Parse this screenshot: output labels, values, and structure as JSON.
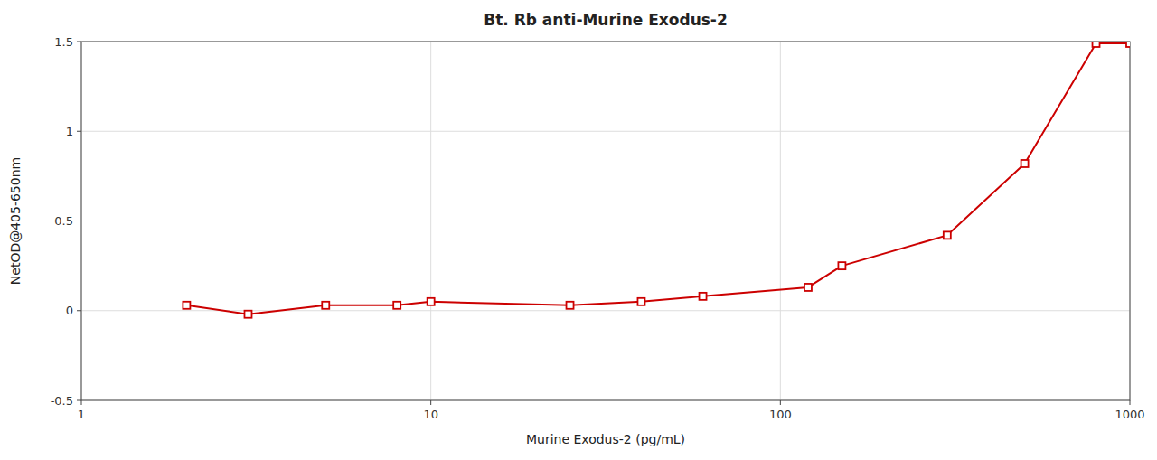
{
  "chart_data": {
    "type": "line",
    "title": "Bt. Rb anti-Murine Exodus-2",
    "x_label": "Murine Exodus-2 (pg/mL)",
    "y_label": "NetOD@405-650nm",
    "x": [
      2,
      3,
      5,
      8,
      10,
      25,
      40,
      60,
      120,
      150,
      300,
      500,
      800,
      1000
    ],
    "values": [
      0.03,
      -0.02,
      0.03,
      0.03,
      0.05,
      0.03,
      0.05,
      0.08,
      0.13,
      0.25,
      0.42,
      0.82,
      1.49,
      1.49
    ],
    "color": "#cc0000",
    "marker": "square",
    "line_style": "solid",
    "log": "x",
    "grid": true,
    "xlim": [
      1,
      1000
    ],
    "xticks": [
      1,
      10,
      100,
      1000
    ],
    "ylim": [
      -0.5,
      1.5
    ],
    "yticks": [
      -0.5,
      0,
      0.5,
      1,
      1.5
    ]
  }
}
